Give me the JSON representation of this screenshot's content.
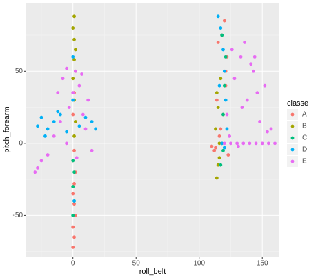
{
  "chart_data": {
    "type": "scatter",
    "x_label": "roll_belt",
    "y_label": "pitch_forearm",
    "legend_title": "classe",
    "xlim": [
      -37,
      163
    ],
    "ylim": [
      -78.5,
      97
    ],
    "xticks": [
      0,
      50,
      100,
      150
    ],
    "yticks": [
      -50,
      0,
      50
    ],
    "grid": true,
    "legend": "right",
    "series": [
      {
        "name": "A",
        "color": "#F8766D",
        "x": [
          0,
          1,
          0,
          2,
          1,
          0,
          1,
          2,
          0,
          1,
          0,
          1,
          2,
          113,
          116,
          119,
          121,
          122,
          118,
          120,
          115,
          110,
          112,
          114,
          117,
          121,
          123
        ],
        "values": [
          -72,
          -65,
          -58,
          -50,
          -42,
          -35,
          -28,
          -20,
          -12,
          -5,
          20,
          35,
          50,
          -3,
          5,
          20,
          40,
          60,
          75,
          85,
          70,
          -2,
          -5,
          30,
          10,
          50,
          -8
        ]
      },
      {
        "name": "B",
        "color": "#A3A500",
        "x": [
          1,
          0,
          1,
          2,
          1,
          0,
          1,
          2,
          1,
          114,
          115,
          116,
          113,
          115,
          117,
          114,
          116
        ],
        "values": [
          88,
          80,
          72,
          65,
          58,
          45,
          30,
          15,
          5,
          -24,
          -15,
          0,
          10,
          25,
          45,
          35,
          -10
        ]
      },
      {
        "name": "C",
        "color": "#00BF7D",
        "x": [
          0,
          1,
          0,
          1,
          0,
          117,
          118,
          119,
          120,
          121,
          118,
          119
        ],
        "values": [
          -50,
          -40,
          -30,
          -20,
          -12,
          -15,
          0,
          20,
          40,
          60,
          75,
          -5
        ]
      },
      {
        "name": "D",
        "color": "#00B0F6",
        "x": [
          -28,
          -25,
          -20,
          -15,
          -10,
          -5,
          5,
          10,
          15,
          18,
          -22,
          -12,
          0,
          1,
          0,
          115,
          117,
          119,
          120,
          121,
          122,
          118,
          116,
          120
        ],
        "values": [
          12,
          18,
          10,
          15,
          20,
          8,
          12,
          18,
          15,
          10,
          5,
          22,
          30,
          -40,
          60,
          88,
          80,
          65,
          50,
          30,
          10,
          0,
          40,
          -3
        ]
      },
      {
        "name": "E",
        "color": "#E76BF3",
        "x": [
          -30,
          -28,
          -25,
          -20,
          -15,
          -10,
          -8,
          -5,
          -3,
          0,
          2,
          5,
          8,
          10,
          12,
          15,
          -5,
          3,
          7,
          -12,
          120,
          125,
          130,
          135,
          140,
          145,
          150,
          155,
          160,
          122,
          128,
          133,
          138,
          143,
          148,
          152,
          157,
          126,
          136,
          146,
          131,
          141,
          124,
          134,
          144,
          154
        ],
        "values": [
          -20,
          -17,
          -12,
          -8,
          5,
          15,
          45,
          52,
          25,
          35,
          50,
          40,
          20,
          10,
          30,
          -5,
          0,
          -10,
          48,
          35,
          0,
          0,
          0,
          0,
          0,
          0,
          0,
          0,
          0,
          20,
          45,
          60,
          30,
          50,
          15,
          40,
          10,
          65,
          70,
          35,
          -2,
          55,
          5,
          25,
          60,
          8
        ]
      }
    ]
  }
}
